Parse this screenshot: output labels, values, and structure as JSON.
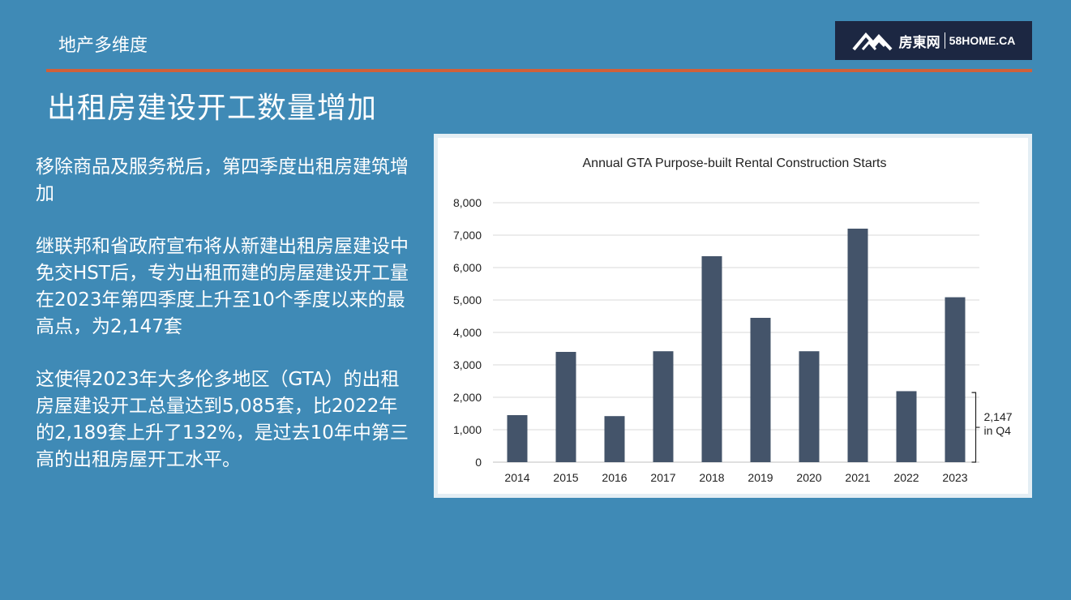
{
  "header": {
    "category": "地产多维度",
    "logo_cn": "房東网",
    "logo_en": "58HOME.CA"
  },
  "slide": {
    "title": "出租房建设开工数量增加",
    "paragraphs": [
      "移除商品及服务税后，第四季度出租房建筑增加",
      "继联邦和省政府宣布将从新建出租房屋建设中免交HST后，专为出租而建的房屋建设开工量在2023年第四季度上升至10个季度以来的最高点，为2,147套",
      "这使得2023年大多伦多地区（GTA）的出租房屋建设开工总量达到5,085套，比2022年的2,189套上升了132%，是过去10年中第三高的出租房屋开工水平。"
    ]
  },
  "chart_data": {
    "type": "bar",
    "title": "Annual GTA Purpose-built Rental Construction Starts",
    "categories": [
      "2014",
      "2015",
      "2016",
      "2017",
      "2018",
      "2019",
      "2020",
      "2021",
      "2022",
      "2023"
    ],
    "values": [
      1450,
      3400,
      1420,
      3420,
      6350,
      4450,
      3420,
      7200,
      2189,
      5085
    ],
    "ylim": [
      0,
      8000
    ],
    "yticks": [
      "0",
      "1,000",
      "2,000",
      "3,000",
      "4,000",
      "5,000",
      "6,000",
      "7,000",
      "8,000"
    ],
    "ytick_values": [
      0,
      1000,
      2000,
      3000,
      4000,
      5000,
      6000,
      7000,
      8000
    ],
    "grid": true,
    "bar_color": "#44546a",
    "annotation": {
      "category": "2023",
      "value": 2147,
      "line1": "2,147",
      "line2": "in Q4"
    }
  }
}
